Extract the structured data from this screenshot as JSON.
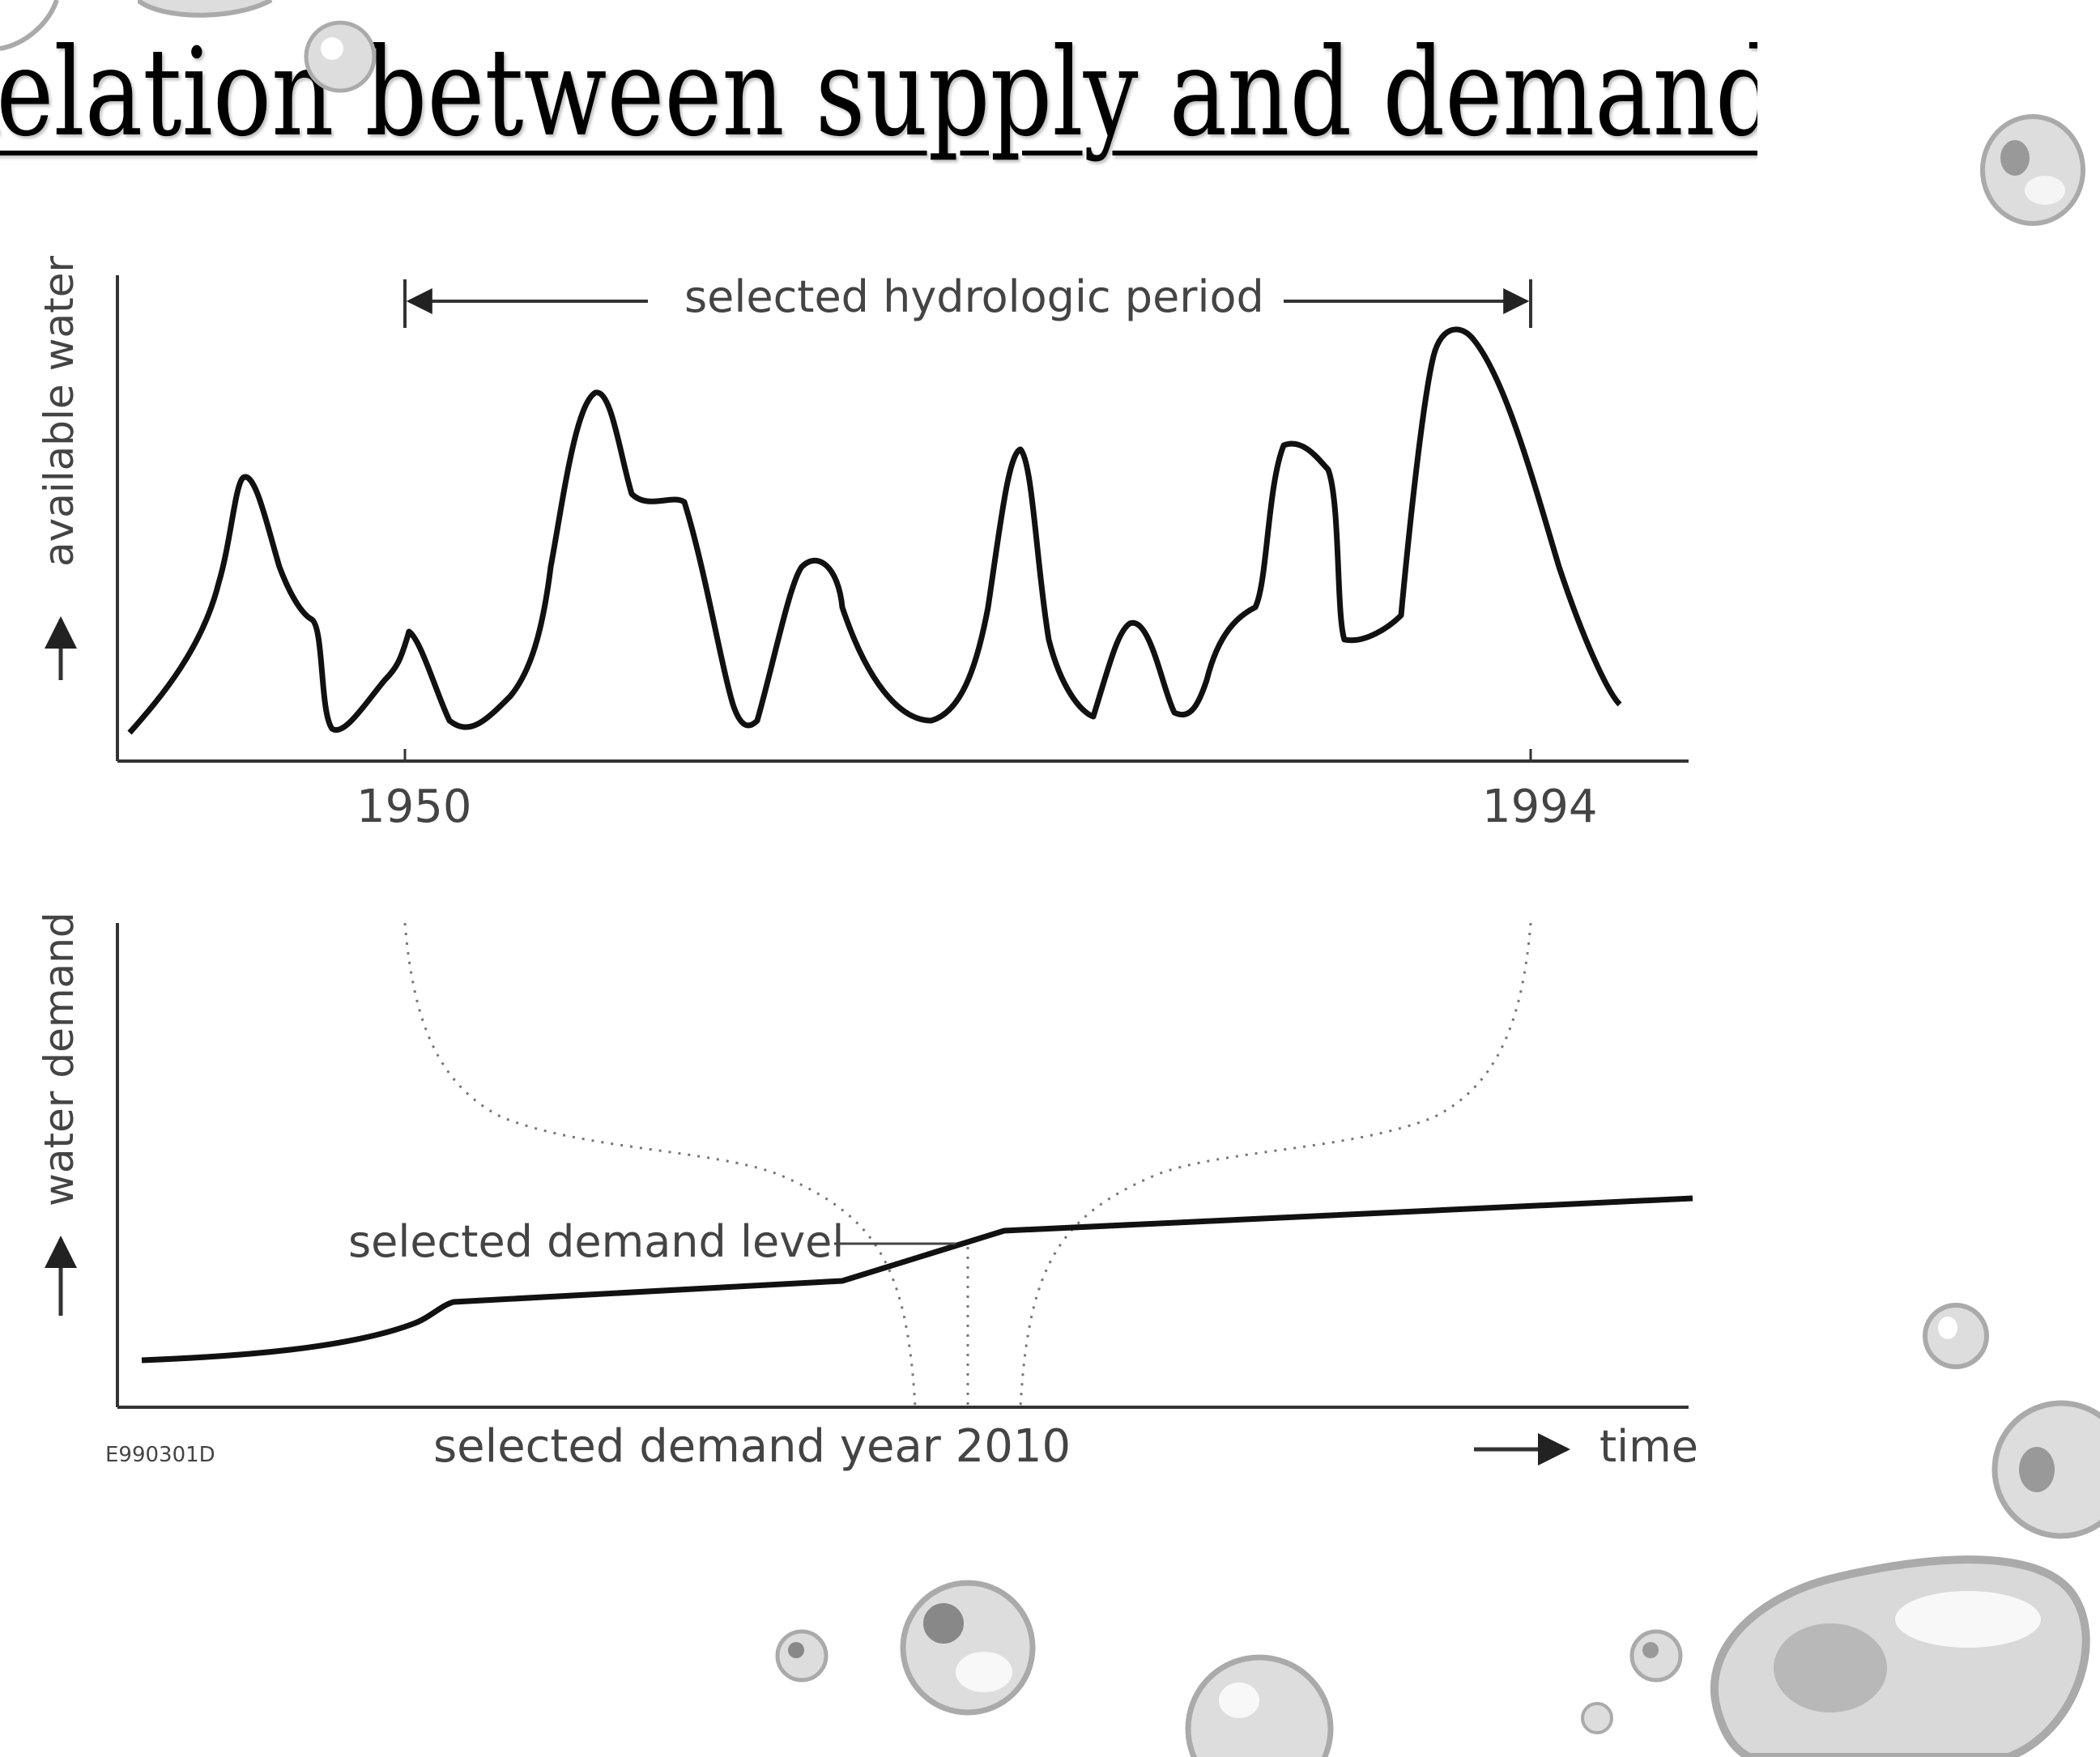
{
  "slide": {
    "title": "Relation between supply and demand"
  },
  "figure": {
    "code": "E990301D",
    "top_panel": {
      "y_axis_label": "available water",
      "period_label": "selected hydrologic period",
      "tick_start": "1950",
      "tick_end": "1994"
    },
    "bottom_panel": {
      "y_axis_label": "water demand",
      "demand_level_label": "selected demand level",
      "demand_year_label": "selected demand year 2010",
      "x_axis_label": "time"
    }
  },
  "colors": {
    "line": "#111111",
    "axis": "#333333",
    "dotted": "#777777",
    "text": "#444444"
  },
  "decorations": {
    "icon": "water-droplet-icon"
  }
}
